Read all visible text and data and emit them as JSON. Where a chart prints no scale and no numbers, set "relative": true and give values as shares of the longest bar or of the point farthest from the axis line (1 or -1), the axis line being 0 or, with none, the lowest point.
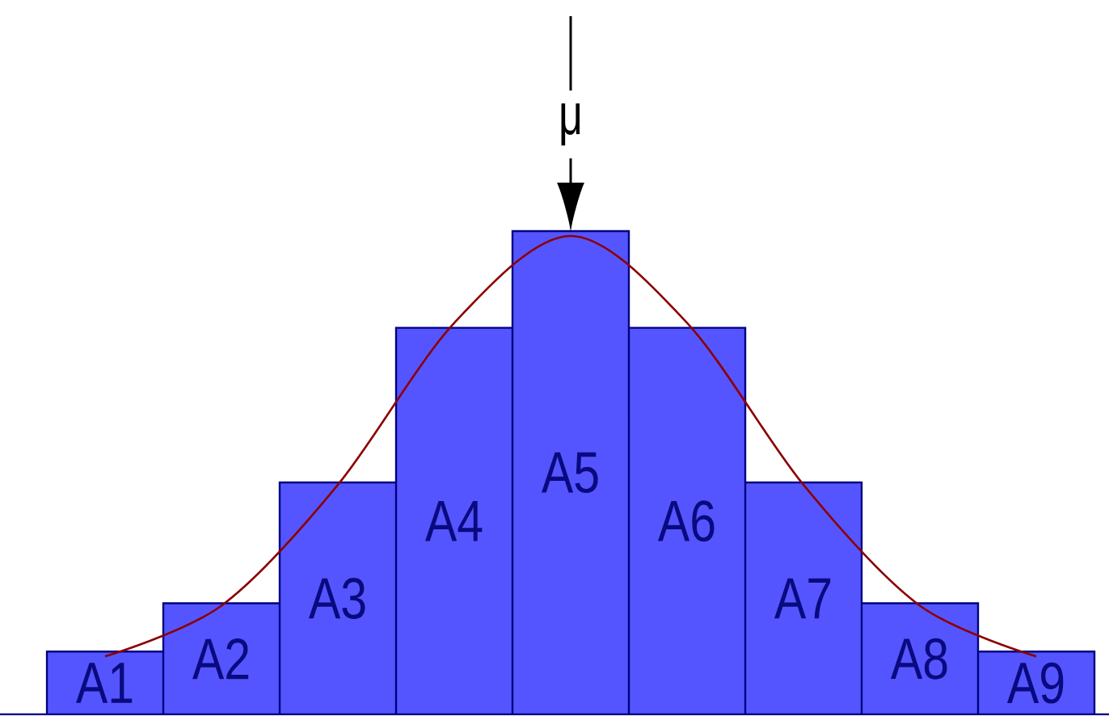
{
  "chart_data": {
    "type": "bar",
    "relative": true,
    "categories": [
      "A1",
      "A2",
      "A3",
      "A4",
      "A5",
      "A6",
      "A7",
      "A8",
      "A9"
    ],
    "series": [
      {
        "color": "#5555ff",
        "values": [
          0.13,
          0.23,
          0.48,
          0.8,
          1,
          0.8,
          0.48,
          0.23,
          0.13
        ]
      },
      {
        "type": "line",
        "color": "#8b0000",
        "values": [
          0.12,
          0.225,
          0.475,
          0.81,
          0.99,
          0.81,
          0.475,
          0.225,
          0.12
        ]
      }
    ],
    "annotations": [
      {
        "text": "μ",
        "x": "A5",
        "y": 1
      }
    ]
  }
}
